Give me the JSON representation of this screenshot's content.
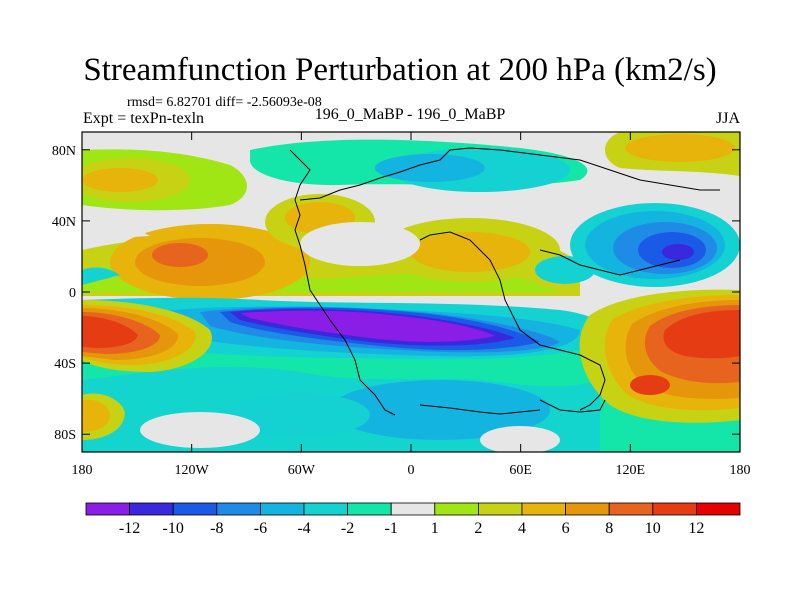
{
  "header": {
    "title": "Streamfunction Perturbation at 200 hPa (km2/s)",
    "stats": "rmsd= 6.82701 diff= -2.56093e-08",
    "left_label": "Expt = texPn-texln",
    "center_label": "196_0_MaBP - 196_0_MaBP",
    "right_label": "JJA"
  },
  "chart_data": {
    "type": "heatmap",
    "title": "Streamfunction Perturbation at 200 hPa (km2/s)",
    "projection": "cylindrical-equidistant",
    "xlabel": "",
    "ylabel": "",
    "xlim": [
      -180,
      180
    ],
    "ylim": [
      -90,
      90
    ],
    "x_ticks": [
      {
        "value": -180,
        "label": "180"
      },
      {
        "value": -120,
        "label": "120W"
      },
      {
        "value": -60,
        "label": "60W"
      },
      {
        "value": 0,
        "label": "0"
      },
      {
        "value": 60,
        "label": "60E"
      },
      {
        "value": 120,
        "label": "120E"
      },
      {
        "value": 180,
        "label": "180"
      }
    ],
    "y_ticks": [
      {
        "value": 80,
        "label": "80N"
      },
      {
        "value": 40,
        "label": "40N"
      },
      {
        "value": 0,
        "label": "0"
      },
      {
        "value": -40,
        "label": "40S"
      },
      {
        "value": -80,
        "label": "80S"
      }
    ],
    "colorbar": {
      "labels": [
        "-12",
        "-10",
        "-8",
        "-6",
        "-4",
        "-2",
        "-1",
        "1",
        "2",
        "4",
        "6",
        "8",
        "10",
        "12"
      ],
      "colors": [
        "#8a1ee6",
        "#3a28dc",
        "#1a5ae6",
        "#1e8ce6",
        "#14b4e0",
        "#14d2d2",
        "#14e6aa",
        "#e6e6e6",
        "#a0e614",
        "#c8d214",
        "#e6b40a",
        "#e6960a",
        "#e6641e",
        "#e63c14",
        "#e60000"
      ]
    },
    "anomaly_centers": [
      {
        "lon": -170,
        "lat": -24,
        "value": 12
      },
      {
        "lon": -150,
        "lat": -30,
        "value": 10
      },
      {
        "lon": 158,
        "lat": -20,
        "value": 12
      },
      {
        "lon": 140,
        "lat": -50,
        "value": 10
      },
      {
        "lon": -10,
        "lat": -22,
        "value": -12
      },
      {
        "lon": 38,
        "lat": -28,
        "value": -12
      },
      {
        "lon": 145,
        "lat": 25,
        "value": -10
      },
      {
        "lon": -120,
        "lat": 22,
        "value": 6
      },
      {
        "lon": -60,
        "lat": 38,
        "value": 6
      },
      {
        "lon": 40,
        "lat": 30,
        "value": 6
      },
      {
        "lon": 20,
        "lat": 70,
        "value": -2
      },
      {
        "lon": -170,
        "lat": 60,
        "value": 6
      },
      {
        "lon": 0,
        "lat": -60,
        "value": -4
      }
    ]
  }
}
